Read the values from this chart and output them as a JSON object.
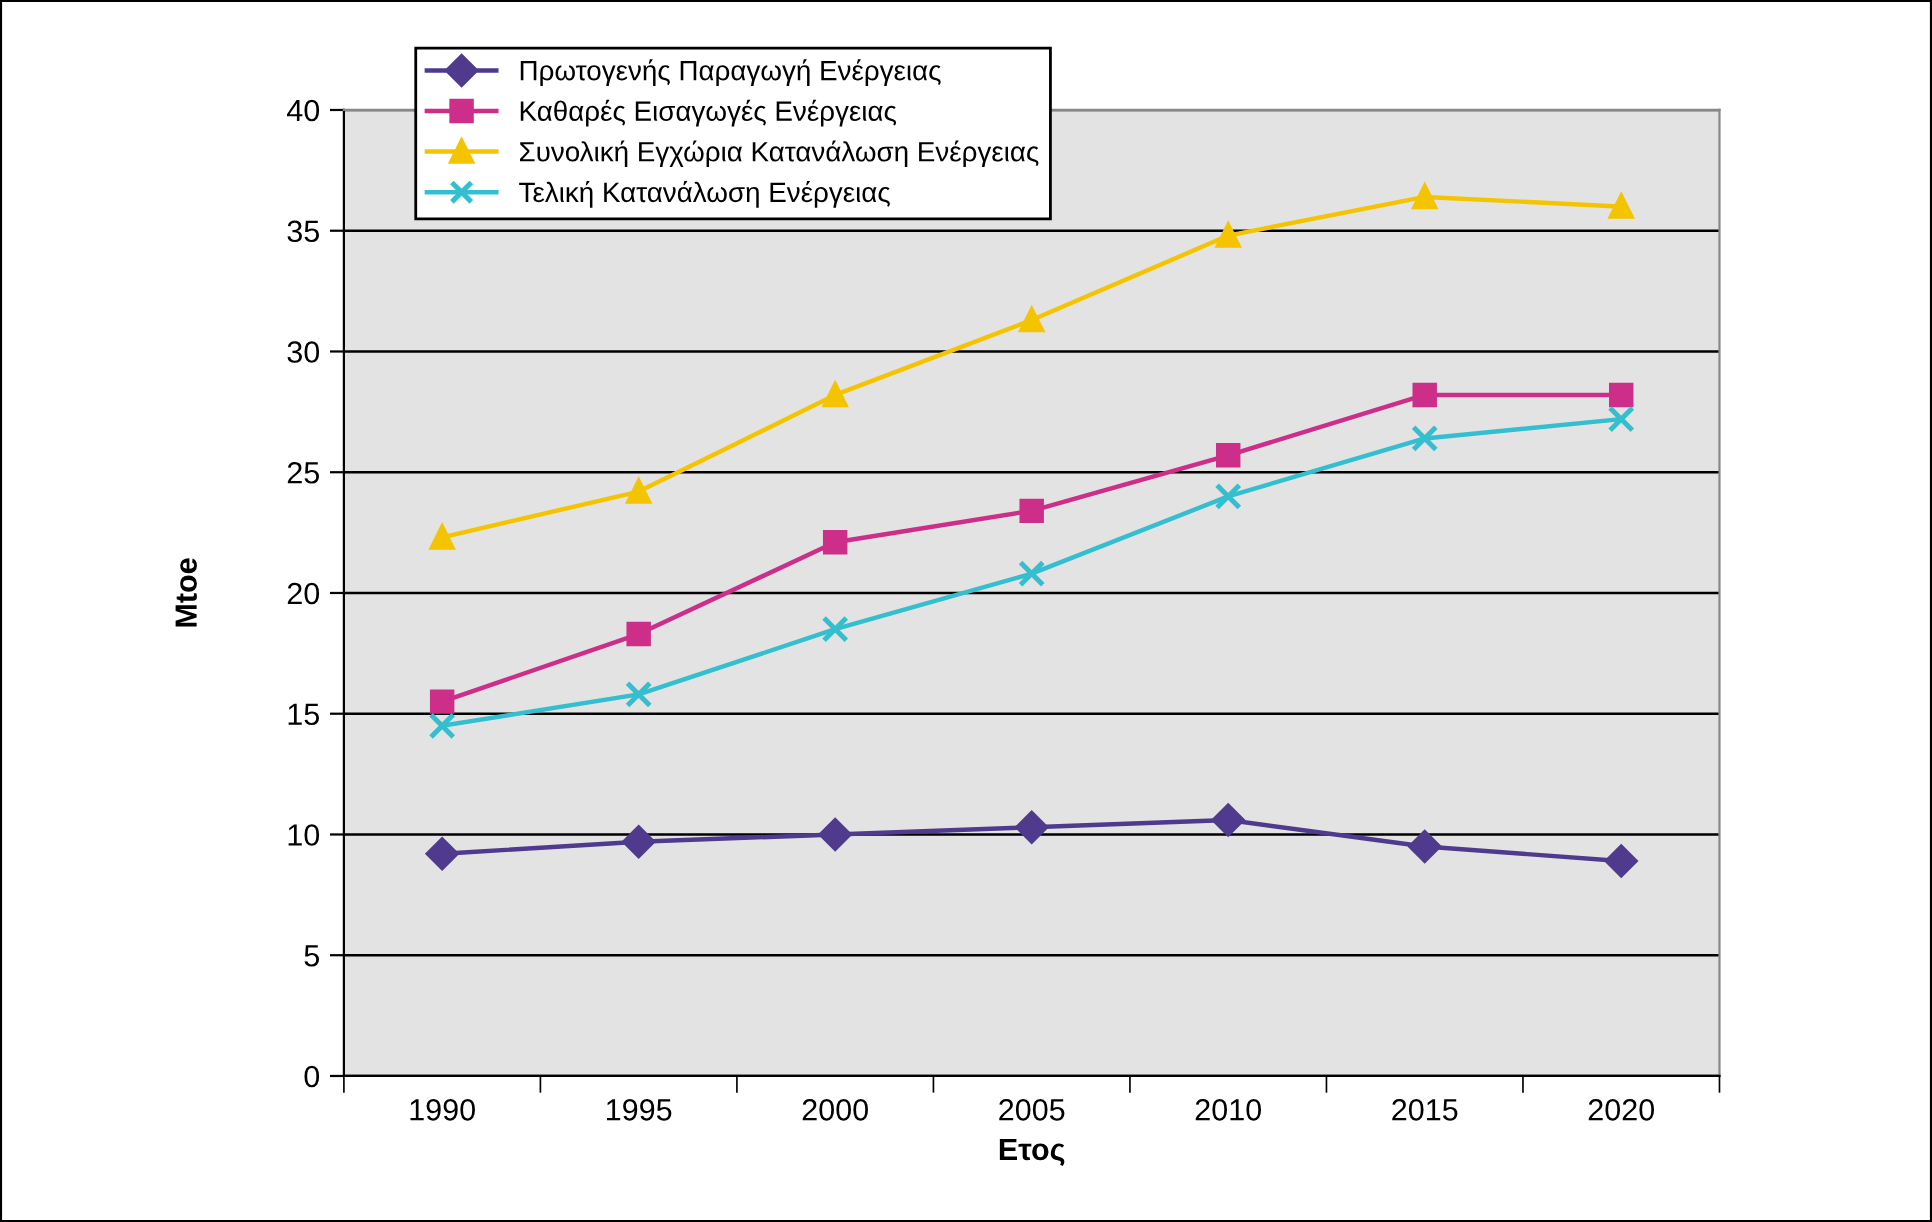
{
  "chart_data": {
    "type": "line",
    "xlabel": "Ετος",
    "ylabel": "Mtoe",
    "categories": [
      "1990",
      "1995",
      "2000",
      "2005",
      "2010",
      "2015",
      "2020"
    ],
    "series": [
      {
        "name": "Πρωτογενής Παραγωγή Ενέργειας",
        "color": "#4f3a8e",
        "marker": "diamond",
        "values": [
          9.2,
          9.7,
          10.0,
          10.3,
          10.6,
          9.5,
          8.9
        ]
      },
      {
        "name": "Καθαρές Εισαγωγές Ενέργειας",
        "color": "#cc2e8a",
        "marker": "square",
        "values": [
          15.5,
          18.3,
          22.1,
          23.4,
          25.7,
          28.2,
          28.2
        ]
      },
      {
        "name": "Συνολική Εγχώρια Κατανάλωση Ενέργειας",
        "color": "#f5c400",
        "marker": "triangle",
        "values": [
          22.3,
          24.2,
          28.2,
          31.3,
          34.8,
          36.4,
          36.0
        ]
      },
      {
        "name": "Τελική Κατανάλωση Ενέργειας",
        "color": "#33bfcf",
        "marker": "cross",
        "values": [
          14.5,
          15.8,
          18.5,
          20.8,
          24.0,
          26.4,
          27.2
        ]
      }
    ],
    "ylim": [
      0,
      40
    ],
    "yticks": [
      0,
      5,
      10,
      15,
      20,
      25,
      30,
      35,
      40
    ],
    "grid": "y",
    "legend": "top left"
  }
}
